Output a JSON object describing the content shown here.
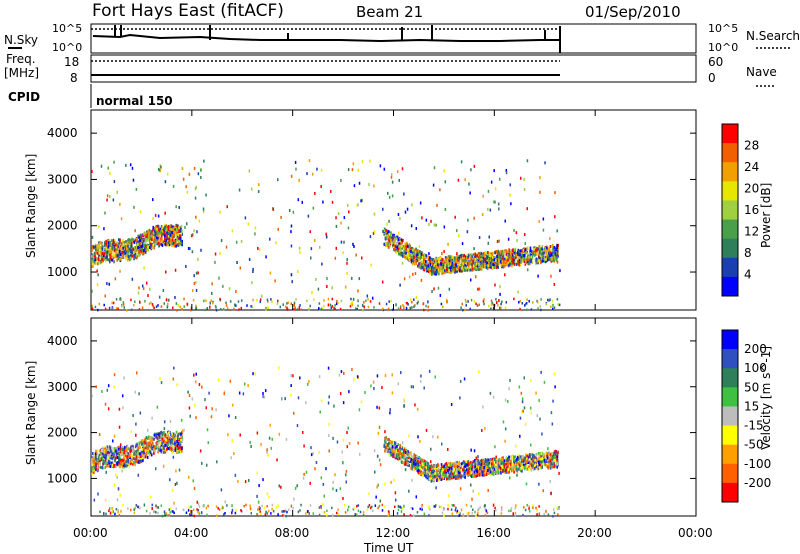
{
  "header": {
    "station": "Fort Hays East (fitACF)",
    "beam": "Beam 21",
    "date": "01/Sep/2010"
  },
  "top_panel": {
    "left_label": "N.Sky",
    "left_ticks": [
      "10^5",
      "10^0"
    ],
    "right_ticks": [
      "10^5",
      "10^0"
    ],
    "right_label": "N.Search"
  },
  "freq_panel": {
    "left_label_1": "Freq.",
    "left_label_2": "[MHz]",
    "left_ticks": [
      "18",
      "8"
    ],
    "right_ticks": [
      "60",
      "0"
    ],
    "right_label": "Nave"
  },
  "cpid": {
    "label": "CPID",
    "program": "normal 150"
  },
  "x_axis": {
    "label": "Time UT",
    "ticks": [
      "00:00",
      "04:00",
      "08:00",
      "12:00",
      "16:00",
      "20:00",
      "00:00"
    ],
    "range_hours": [
      0,
      24
    ]
  },
  "colors": {
    "power": [
      "#0000ff",
      "#1a3fb0",
      "#2e7f5a",
      "#4aa04a",
      "#a0d040",
      "#e6e600",
      "#f0a000",
      "#f06000",
      "#ff0000"
    ],
    "velocity": [
      "#0000ff",
      "#3050c0",
      "#2e7f5a",
      "#40c040",
      "#bdbdbd",
      "#ffff00",
      "#ffa000",
      "#ff6000",
      "#ff0000"
    ]
  },
  "chart_data": [
    {
      "type": "heatmap",
      "panel": "power",
      "ylabel": "Slant Range [km]",
      "xlabel": "Time UT",
      "ylim": [
        180,
        4500
      ],
      "yticks": [
        "1000",
        "2000",
        "3000",
        "4000"
      ],
      "colorbar_label": "Power [dB]",
      "colorbar_ticks": [
        "4",
        "8",
        "12",
        "16",
        "20",
        "24",
        "28"
      ],
      "colorbar_range": [
        0,
        32
      ],
      "scatter_regions": [
        {
          "t0": 0.0,
          "t1": 3.6,
          "r0": 1200,
          "r1": 2000,
          "value": 12
        },
        {
          "t0": 11.5,
          "t1": 18.5,
          "r0": 900,
          "r1": 1900,
          "value": 10
        }
      ]
    },
    {
      "type": "heatmap",
      "panel": "velocity",
      "ylabel": "Slant Range [km]",
      "xlabel": "Time UT",
      "ylim": [
        180,
        4500
      ],
      "yticks": [
        "1000",
        "2000",
        "3000",
        "4000"
      ],
      "colorbar_label": "Velocity [m s^-1]",
      "colorbar_ticks": [
        "-200",
        "-100",
        "-50",
        "-15",
        "15",
        "50",
        "100",
        "200"
      ],
      "colorbar_range": [
        -250,
        250
      ],
      "scatter_regions": [
        {
          "t0": 0.0,
          "t1": 3.6,
          "r0": 1200,
          "r1": 2000,
          "value": -15
        },
        {
          "t0": 11.5,
          "t1": 18.5,
          "r0": 900,
          "r1": 1900,
          "value": 0
        }
      ]
    }
  ]
}
